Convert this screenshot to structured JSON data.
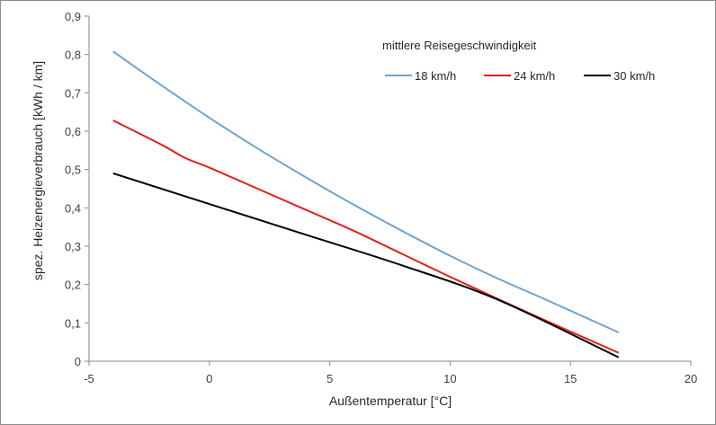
{
  "chart_data": {
    "type": "line",
    "xlabel": "Außentemperatur [°C]",
    "ylabel": "spez. Heizenergieverbrauch [kWh / km]",
    "xlim": [
      -5,
      20
    ],
    "ylim": [
      0,
      0.9
    ],
    "x_ticks": [
      -5,
      0,
      5,
      10,
      15,
      20
    ],
    "y_ticks": [
      0,
      0.1,
      0.2,
      0.3,
      0.4,
      0.5,
      0.6,
      0.7,
      0.8,
      0.9
    ],
    "x_tick_labels": [
      "-5",
      "0",
      "5",
      "10",
      "15",
      "20"
    ],
    "y_tick_labels": [
      "0",
      "0,1",
      "0,2",
      "0,3",
      "0,4",
      "0,5",
      "0,6",
      "0,7",
      "0,8",
      "0,9"
    ],
    "grid": false,
    "legend": {
      "title": "mittlere Reisegeschwindigkeit",
      "position": "top-right"
    },
    "series": [
      {
        "name": "18 km/h",
        "color": "#6fa3cf",
        "x": [
          -4,
          -2,
          0,
          2,
          4,
          6,
          8,
          10,
          12,
          14,
          17
        ],
        "y": [
          0.808,
          0.72,
          0.635,
          0.555,
          0.48,
          0.408,
          0.34,
          0.275,
          0.215,
          0.16,
          0.075
        ]
      },
      {
        "name": "24 km/h",
        "color": "#e0201b",
        "x": [
          -4,
          -2,
          -1,
          0,
          2,
          4,
          6,
          8,
          10,
          12,
          14,
          17
        ],
        "y": [
          0.628,
          0.565,
          0.53,
          0.505,
          0.45,
          0.395,
          0.34,
          0.28,
          0.22,
          0.162,
          0.105,
          0.022
        ]
      },
      {
        "name": "30 km/h",
        "color": "#000000",
        "x": [
          -4,
          0,
          4,
          8,
          12,
          17
        ],
        "y": [
          0.49,
          0.41,
          0.33,
          0.25,
          0.16,
          0.01
        ]
      }
    ]
  }
}
